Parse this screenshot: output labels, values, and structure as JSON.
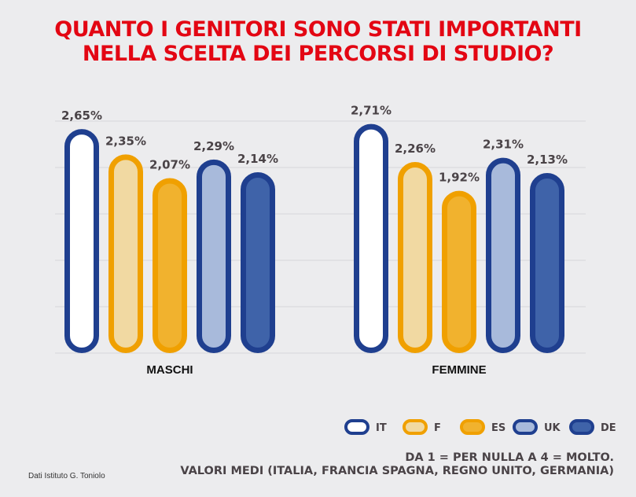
{
  "title_lines": [
    "QUANTO I GENITORI SONO STATI IMPORTANTI",
    "NELLA SCELTA DEI PERCORSI DI STUDIO?"
  ],
  "note_lines": [
    "DA 1 = PER NULLA A 4 = MOLTO.",
    "VALORI MEDI (ITALIA, FRANCIA SPAGNA, REGNO UNITO, GERMANIA)"
  ],
  "credit": "Dati Istituto G. Toniolo",
  "chart_data": {
    "type": "bar",
    "categories": [
      "MASCHI",
      "FEMMINE"
    ],
    "series": [
      {
        "name": "IT",
        "values": [
          2.65,
          2.71
        ],
        "labels": [
          "2,65%",
          "2,71%"
        ],
        "border": "#1f3f8f",
        "fill": "#ffffff"
      },
      {
        "name": "F",
        "values": [
          2.35,
          2.26
        ],
        "labels": [
          "2,35%",
          "2,26%"
        ],
        "border": "#f0a000",
        "fill": "#f1d9a2"
      },
      {
        "name": "ES",
        "values": [
          2.07,
          1.92
        ],
        "labels": [
          "2,07%",
          "1,92%"
        ],
        "border": "#f0a000",
        "fill": "#f1b22e"
      },
      {
        "name": "UK",
        "values": [
          2.29,
          2.31
        ],
        "labels": [
          "2,29%",
          "2,31%"
        ],
        "border": "#1f3f8f",
        "fill": "#a8badb"
      },
      {
        "name": "DE",
        "values": [
          2.14,
          2.13
        ],
        "labels": [
          "2,14%",
          "2,13%"
        ],
        "border": "#1f3f8f",
        "fill": "#3f63a9"
      }
    ],
    "ylim": [
      0,
      2.8
    ],
    "grid": true,
    "legend": "bottom-right",
    "label_color": "#4a4347"
  }
}
